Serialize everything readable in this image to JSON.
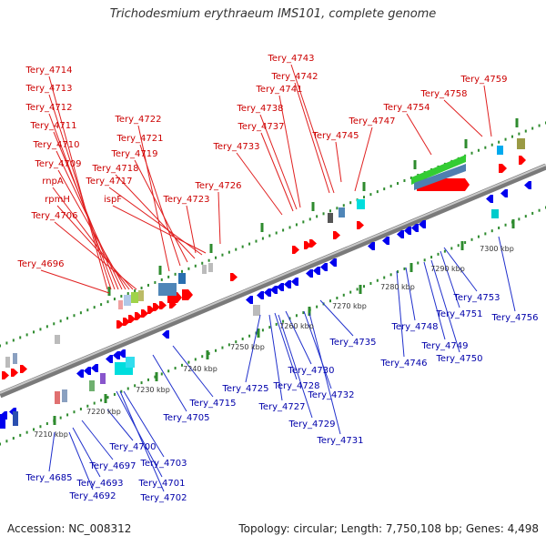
{
  "title": "Trichodesmium erythraeum IMS101, complete genome",
  "footer": {
    "accession": "Accession: NC_008312",
    "summary": "Topology: circular; Length: 7,750,108 bp; Genes: 4,498"
  },
  "colors": {
    "forward_label": "#cc0000",
    "reverse_label": "#0000aa",
    "backbone": "#9a9a9a",
    "tick_marks": "#2e8b2e",
    "forward_arrow": "#ff0000",
    "reverse_arrow": "#0000ee",
    "rrna_green": "#33cc33",
    "rrna_blue": "#4f7fb0"
  },
  "scale_labels": [
    "7210 kbp",
    "7220 kbp",
    "7230 kbp",
    "7240 kbp",
    "7250 kbp",
    "7260 kbp",
    "7270 kbp",
    "7280 kbp",
    "7290 kbp",
    "7300 kbp"
  ],
  "forward_genes": [
    "Tery_4714",
    "Tery_4713",
    "Tery_4712",
    "Tery_4711",
    "Tery_4710",
    "Tery_4709",
    "rnpA",
    "rpmH",
    "Tery_4706",
    "Tery_4696",
    "Tery_4722",
    "Tery_4721",
    "Tery_4719",
    "Tery_4718",
    "Tery_4717",
    "ispF",
    "Tery_4723",
    "Tery_4726",
    "Tery_4733",
    "Tery_4737",
    "Tery_4738",
    "Tery_4741",
    "Tery_4742",
    "Tery_4743",
    "Tery_4745",
    "Tery_4747",
    "Tery_4754",
    "Tery_4758",
    "Tery_4759"
  ],
  "reverse_genes": [
    "Tery_4685",
    "Tery_4693",
    "Tery_4692",
    "Tery_4697",
    "Tery_4700",
    "Tery_4703",
    "Tery_4701",
    "Tery_4702",
    "Tery_4705",
    "Tery_4715",
    "Tery_4725",
    "Tery_4727",
    "Tery_4728",
    "Tery_4729",
    "Tery_4730",
    "Tery_4731",
    "Tery_4732",
    "Tery_4735",
    "Tery_4746",
    "Tery_4748",
    "Tery_4749",
    "Tery_4750",
    "Tery_4751",
    "Tery_4753",
    "Tery_4756"
  ]
}
